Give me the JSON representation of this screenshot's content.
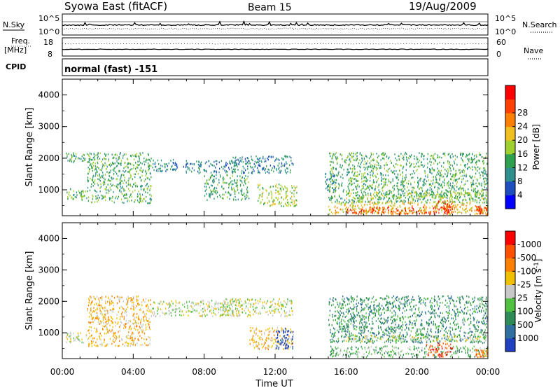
{
  "header": {
    "station": "Syowa East (fitACF)",
    "beam": "Beam 15",
    "date": "19/Aug/2009"
  },
  "panel_labels": {
    "nsky": "N.Sky",
    "freq_line1": "Freq.",
    "freq_line2": "[MHz]",
    "cpid": "CPID",
    "nsearch": "N.Search",
    "nave": "Nave",
    "mode": "normal (fast) -151"
  },
  "noise_axis": {
    "left_top": "10^5",
    "left_bottom": "10^0",
    "right_top": "10^5",
    "right_bottom": "10^0"
  },
  "freq_axis": {
    "left_top": "18",
    "left_bottom": "8",
    "right_top": "60",
    "right_bottom": "0"
  },
  "chart_data": [
    {
      "type": "heatmap",
      "name": "power",
      "xlabel": "",
      "ylabel": "Slant Range [km]",
      "x_ticks": [
        "00:00",
        "04:00",
        "08:00",
        "12:00",
        "16:00",
        "20:00",
        "00:00"
      ],
      "x_range_hours": [
        0,
        24
      ],
      "y_ticks": [
        1000,
        2000,
        3000,
        4000
      ],
      "ylim": [
        180,
        4500
      ],
      "colorbar": {
        "label": "Power [dB]",
        "ticks": [
          4,
          8,
          12,
          16,
          20,
          24,
          28
        ],
        "range": [
          0,
          30
        ],
        "colors": [
          "#0000ff",
          "#1f4fbf",
          "#2f8f8f",
          "#2fa050",
          "#a0d030",
          "#f0c020",
          "#ff8000",
          "#ff4000",
          "#ff0000"
        ]
      },
      "regions": [
        {
          "t": [
            0.2,
            1.4
          ],
          "r": [
            700,
            1050
          ],
          "level": 3
        },
        {
          "t": [
            0.2,
            1.4
          ],
          "r": [
            1900,
            2200
          ],
          "level": 3
        },
        {
          "t": [
            1.4,
            5.0
          ],
          "r": [
            600,
            2200
          ],
          "level": 3
        },
        {
          "t": [
            5.0,
            6.5
          ],
          "r": [
            1600,
            2000
          ],
          "level": 2
        },
        {
          "t": [
            6.8,
            9.8
          ],
          "r": [
            1550,
            1950
          ],
          "level": 2
        },
        {
          "t": [
            8.0,
            10.5
          ],
          "r": [
            700,
            1500
          ],
          "level": 3
        },
        {
          "t": [
            9.5,
            13.0
          ],
          "r": [
            1550,
            2100
          ],
          "level": 2
        },
        {
          "t": [
            11.0,
            13.2
          ],
          "r": [
            500,
            1200
          ],
          "level": 4
        },
        {
          "t": [
            14.8,
            15.4
          ],
          "r": [
            1000,
            1550
          ],
          "level": 2
        },
        {
          "t": [
            15.0,
            24.0
          ],
          "r": [
            600,
            2200
          ],
          "level": 3
        },
        {
          "t": [
            16.0,
            24.0
          ],
          "r": [
            750,
            950
          ],
          "level": 4
        },
        {
          "t": [
            15.0,
            24.0
          ],
          "r": [
            250,
            650
          ],
          "level": 5
        },
        {
          "t": [
            16.0,
            22.0
          ],
          "r": [
            250,
            480
          ],
          "level": 7
        },
        {
          "t": [
            21.0,
            22.0
          ],
          "r": [
            300,
            700
          ],
          "level": 7
        },
        {
          "t": [
            23.3,
            24.0
          ],
          "r": [
            250,
            500
          ],
          "level": 7
        }
      ]
    },
    {
      "type": "heatmap",
      "name": "velocity",
      "xlabel": "Time UT",
      "ylabel": "Slant Range [km]",
      "x_ticks": [
        "00:00",
        "04:00",
        "08:00",
        "12:00",
        "16:00",
        "20:00",
        "00:00"
      ],
      "x_range_hours": [
        0,
        24
      ],
      "y_ticks": [
        1000,
        2000,
        3000,
        4000
      ],
      "ylim": [
        180,
        4500
      ],
      "colorbar": {
        "label": "Velocity [m s^-1]",
        "ticks": [
          "1000",
          "500",
          "100",
          "25",
          "-25",
          "-100",
          "-500",
          "-1000"
        ],
        "range": [
          -1200,
          1200
        ],
        "colors": [
          "#2040c0",
          "#3070a0",
          "#2e8b57",
          "#50c040",
          "#c8c8c8",
          "#f0c000",
          "#ff8000",
          "#ff5000",
          "#ff0000"
        ]
      },
      "regions": [
        {
          "t": [
            0.2,
            1.4
          ],
          "r": [
            700,
            1050
          ],
          "level": 4
        },
        {
          "t": [
            1.4,
            5.0
          ],
          "r": [
            600,
            2200
          ],
          "level": 5
        },
        {
          "t": [
            5.0,
            10.0
          ],
          "r": [
            1550,
            2050
          ],
          "level": 4
        },
        {
          "t": [
            9.0,
            13.0
          ],
          "r": [
            1550,
            2100
          ],
          "level": 4
        },
        {
          "t": [
            10.5,
            13.0
          ],
          "r": [
            500,
            1200
          ],
          "level": 5
        },
        {
          "t": [
            12.0,
            13.0
          ],
          "r": [
            500,
            1200
          ],
          "level": 0
        },
        {
          "t": [
            15.0,
            24.0
          ],
          "r": [
            700,
            2200
          ],
          "level": 2
        },
        {
          "t": [
            16.0,
            24.0
          ],
          "r": [
            750,
            950
          ],
          "level": 4
        },
        {
          "t": [
            15.0,
            24.0
          ],
          "r": [
            250,
            600
          ],
          "level": 3
        },
        {
          "t": [
            20.5,
            22.0
          ],
          "r": [
            250,
            700
          ],
          "level": 7
        },
        {
          "t": [
            23.3,
            24.0
          ],
          "r": [
            250,
            500
          ],
          "level": 6
        }
      ]
    }
  ]
}
